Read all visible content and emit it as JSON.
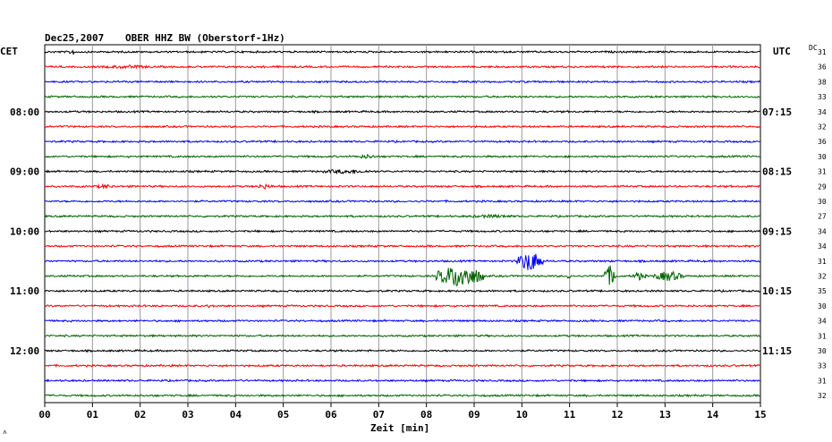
{
  "header": {
    "date": "Dec25,2007",
    "station": "OBER HHZ BW (Oberstorf-1Hz)",
    "left_zone": "CET",
    "right_zone": "UTC",
    "dc_label": "DC",
    "corner_mark": "˄"
  },
  "chart_data": {
    "type": "line",
    "xlabel": "Zeit [min]",
    "xlim": [
      0,
      15
    ],
    "x_ticks": [
      "00",
      "01",
      "02",
      "03",
      "04",
      "05",
      "06",
      "07",
      "08",
      "09",
      "10",
      "11",
      "12",
      "13",
      "14",
      "15"
    ],
    "trace_count": 24,
    "trace_colors": [
      "#000000",
      "#ff0000",
      "#0000ff",
      "#006400"
    ],
    "left_time_labels": [
      {
        "trace": 4,
        "label": "08:00"
      },
      {
        "trace": 8,
        "label": "09:00"
      },
      {
        "trace": 12,
        "label": "10:00"
      },
      {
        "trace": 16,
        "label": "11:00"
      },
      {
        "trace": 20,
        "label": "12:00"
      }
    ],
    "right_time_labels": [
      {
        "trace": 4,
        "label": "07:15"
      },
      {
        "trace": 8,
        "label": "08:15"
      },
      {
        "trace": 12,
        "label": "09:15"
      },
      {
        "trace": 16,
        "label": "10:15"
      },
      {
        "trace": 20,
        "label": "11:15"
      }
    ],
    "dc_offsets": [
      "31",
      "36",
      "38",
      "33",
      "34",
      "32",
      "36",
      "30",
      "31",
      "29",
      "30",
      "27",
      "34",
      "34",
      "31",
      "32",
      "35",
      "30",
      "34",
      "31",
      "30",
      "33",
      "31",
      "32"
    ],
    "events": [
      {
        "trace": 0,
        "start": 0.5,
        "end": 0.65,
        "amplitude": 4
      },
      {
        "trace": 14,
        "start": 9.9,
        "end": 10.45,
        "amplitude": 12
      },
      {
        "trace": 15,
        "start": 8.2,
        "end": 9.2,
        "amplitude": 14
      },
      {
        "trace": 15,
        "start": 10.95,
        "end": 11.05,
        "amplitude": 6
      },
      {
        "trace": 15,
        "start": 11.7,
        "end": 12.0,
        "amplitude": 12
      },
      {
        "trace": 15,
        "start": 12.3,
        "end": 12.6,
        "amplitude": 5
      },
      {
        "trace": 15,
        "start": 12.75,
        "end": 13.4,
        "amplitude": 6
      },
      {
        "trace": 8,
        "start": 5.6,
        "end": 7.0,
        "amplitude": 2.5
      },
      {
        "trace": 9,
        "start": 4.4,
        "end": 4.8,
        "amplitude": 3
      },
      {
        "trace": 9,
        "start": 1.0,
        "end": 1.5,
        "amplitude": 2.5
      },
      {
        "trace": 1,
        "start": 1.0,
        "end": 2.5,
        "amplitude": 2
      },
      {
        "trace": 7,
        "start": 6.5,
        "end": 7.0,
        "amplitude": 2.5
      },
      {
        "trace": 11,
        "start": 8.7,
        "end": 10.0,
        "amplitude": 2
      },
      {
        "trace": 17,
        "start": 3.4,
        "end": 3.5,
        "amplitude": 3
      }
    ]
  }
}
